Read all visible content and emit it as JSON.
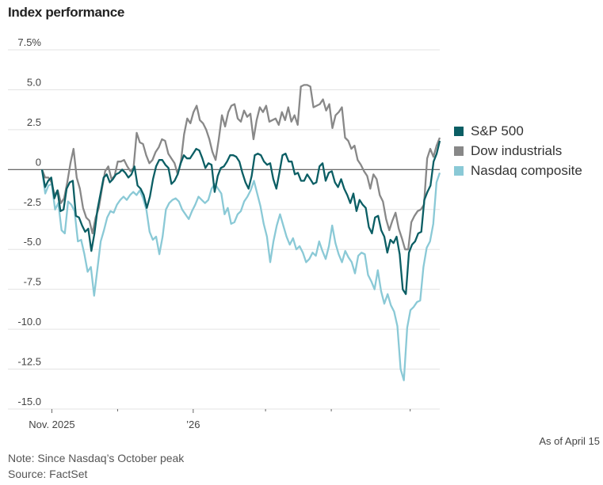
{
  "title": "Index performance",
  "as_of": "As of April 15",
  "note": "Note: Since Nasdaq’s October peak",
  "source": "Source: FactSet",
  "chart_data": {
    "type": "line",
    "title": "Index performance",
    "xlabel": "",
    "ylabel": "",
    "ylim": [
      -15,
      7.5
    ],
    "yticks": [
      7.5,
      5.0,
      2.5,
      0,
      -2.5,
      -5.0,
      -7.5,
      -10.0,
      -12.5,
      -15.0
    ],
    "ytick_labels": [
      "7.5%",
      "5.0",
      "2.5",
      "0",
      "-2.5",
      "-5.0",
      "-7.5",
      "-10.0",
      "-12.5",
      "-15.0"
    ],
    "x_range": [
      0,
      121
    ],
    "xticks": [
      {
        "x": 3,
        "label": "Nov. 2025"
      },
      {
        "x": 23,
        "label": ""
      },
      {
        "x": 46,
        "label": "’26"
      },
      {
        "x": 68,
        "label": ""
      },
      {
        "x": 88,
        "label": ""
      },
      {
        "x": 112,
        "label": ""
      }
    ],
    "grid": true,
    "legend": "right",
    "series": [
      {
        "name": "S&P 500",
        "color": "#0b5e64",
        "values": [
          0,
          -1.1,
          -0.7,
          -0.5,
          -1.8,
          -1.3,
          -2.6,
          -2.5,
          -1.2,
          -0.8,
          -0.7,
          -2.9,
          -3.0,
          -3.5,
          -3.9,
          -3.7,
          -5.1,
          -4.0,
          -2.5,
          -1.5,
          -0.5,
          -0.3,
          -0.8,
          -0.6,
          -0.3,
          -0.2,
          0,
          -0.2,
          -0.5,
          -0.3,
          0.2,
          -1.0,
          -1.2,
          -1.6,
          -2.4,
          -1.7,
          -0.6,
          0.2,
          0.6,
          0.6,
          0.3,
          0.1,
          -0.9,
          -0.7,
          -0.3,
          0.4,
          0.9,
          0.7,
          0.7,
          1.0,
          1.3,
          1.2,
          0.7,
          0.1,
          0.4,
          0.3,
          -1.4,
          -0.4,
          0.1,
          0.2,
          0.5,
          0.9,
          0.9,
          0.8,
          0.5,
          -0.2,
          -0.8,
          -1.2,
          -0.4,
          0.9,
          1.0,
          0.9,
          0.5,
          0.3,
          0.4,
          -0.6,
          -1.2,
          -0.2,
          0.9,
          1.0,
          0.5,
          0.5,
          -0.3,
          -0.2,
          -0.7,
          -0.7,
          -0.3,
          -0.6,
          -0.9,
          -0.8,
          0.2,
          0.4,
          -0.7,
          -0.2,
          -0.1,
          -0.8,
          -1.1,
          -0.6,
          -1.2,
          -1.6,
          -2.1,
          -1.5,
          -2.6,
          -1.9,
          -2.2,
          -2.4,
          -3.6,
          -4.0,
          -3.0,
          -2.9,
          -3.8,
          -4.2,
          -5.2,
          -4.4,
          -4.6,
          -4.2,
          -5.3,
          -7.5,
          -7.8,
          -5.2,
          -4.7,
          -4.5,
          -4.0,
          -3.9,
          -1.9,
          -1.4,
          -1.0,
          0.5,
          1.0,
          1.8
        ]
      },
      {
        "name": "Dow industrials",
        "color": "#888888",
        "values": [
          0,
          -0.5,
          -0.5,
          -0.8,
          -1.6,
          -1.3,
          -2.1,
          -1.8,
          -0.8,
          0.4,
          1.3,
          -0.5,
          -1.2,
          -2.4,
          -3.0,
          -3.2,
          -4.0,
          -3.0,
          -2.4,
          -1.2,
          -0.1,
          0.2,
          -0.6,
          -0.4,
          0.5,
          0.5,
          0.6,
          0.2,
          -0.1,
          0.1,
          2.3,
          1.7,
          1.6,
          0.9,
          0.4,
          0.6,
          1.1,
          1.4,
          1.9,
          1.8,
          1.0,
          0.7,
          0.4,
          -0.3,
          0.5,
          2.2,
          3.2,
          2.9,
          3.6,
          4.0,
          3.1,
          2.9,
          2.5,
          1.9,
          1.1,
          0.6,
          1.9,
          3.4,
          2.7,
          3.6,
          4.0,
          4.1,
          3.2,
          3.0,
          3.7,
          3.3,
          3.5,
          1.9,
          3.1,
          3.9,
          3.6,
          4.0,
          3.0,
          3.1,
          3.2,
          2.8,
          3.6,
          3.1,
          3.9,
          3.0,
          3.4,
          2.8,
          5.2,
          5.3,
          5.3,
          5.2,
          3.9,
          4.0,
          4.1,
          4.4,
          3.7,
          4.1,
          2.6,
          3.4,
          3.6,
          3.9,
          2.0,
          1.8,
          1.3,
          1.5,
          0.6,
          0.3,
          -0.1,
          -0.4,
          -1.2,
          -0.3,
          -0.6,
          -1.6,
          -2.0,
          -3.1,
          -3.8,
          -3.2,
          -2.7,
          -3.7,
          -4.3,
          -5.0,
          -5.0,
          -3.3,
          -2.9,
          -2.6,
          -2.5,
          -2.2,
          0.7,
          1.3,
          0.8,
          1.5,
          2.0
        ]
      },
      {
        "name": "Nasdaq composite",
        "color": "#8ac9d6",
        "values": [
          0,
          -1.5,
          -1.0,
          -0.9,
          -2.5,
          -2.1,
          -3.8,
          -4.0,
          -2.0,
          -2.2,
          -2.6,
          -4.5,
          -4.4,
          -5.3,
          -6.4,
          -6.1,
          -7.9,
          -6.2,
          -4.5,
          -3.8,
          -3.0,
          -2.6,
          -2.7,
          -2.2,
          -1.9,
          -1.7,
          -1.9,
          -1.6,
          -1.4,
          -1.6,
          -1.3,
          -1.8,
          -2.5,
          -3.9,
          -4.4,
          -4.2,
          -5.3,
          -4.2,
          -2.5,
          -2.1,
          -1.9,
          -1.8,
          -2.0,
          -2.5,
          -2.8,
          -3.1,
          -2.6,
          -2.2,
          -1.7,
          -1.9,
          -2.1,
          -1.9,
          -1.2,
          -0.9,
          -1.2,
          -1.5,
          -2.8,
          -2.4,
          -3.4,
          -3.3,
          -2.8,
          -2.6,
          -2.0,
          -1.7,
          -1.3,
          -0.7,
          -1.5,
          -2.3,
          -3.4,
          -4.2,
          -5.8,
          -4.5,
          -3.5,
          -2.8,
          -3.5,
          -4.2,
          -4.7,
          -4.3,
          -5.0,
          -4.8,
          -5.2,
          -5.8,
          -5.6,
          -5.2,
          -5.4,
          -4.5,
          -5.1,
          -5.6,
          -4.8,
          -3.5,
          -4.6,
          -5.3,
          -5.8,
          -5.1,
          -5.5,
          -5.8,
          -6.5,
          -5.4,
          -5.2,
          -5.3,
          -6.6,
          -7.0,
          -7.5,
          -6.3,
          -7.6,
          -8.4,
          -7.8,
          -8.5,
          -8.9,
          -9.8,
          -12.5,
          -13.2,
          -9.9,
          -8.8,
          -8.6,
          -8.3,
          -8.2,
          -6.1,
          -4.9,
          -4.5,
          -3.4,
          -0.8,
          -0.2
        ]
      }
    ]
  }
}
